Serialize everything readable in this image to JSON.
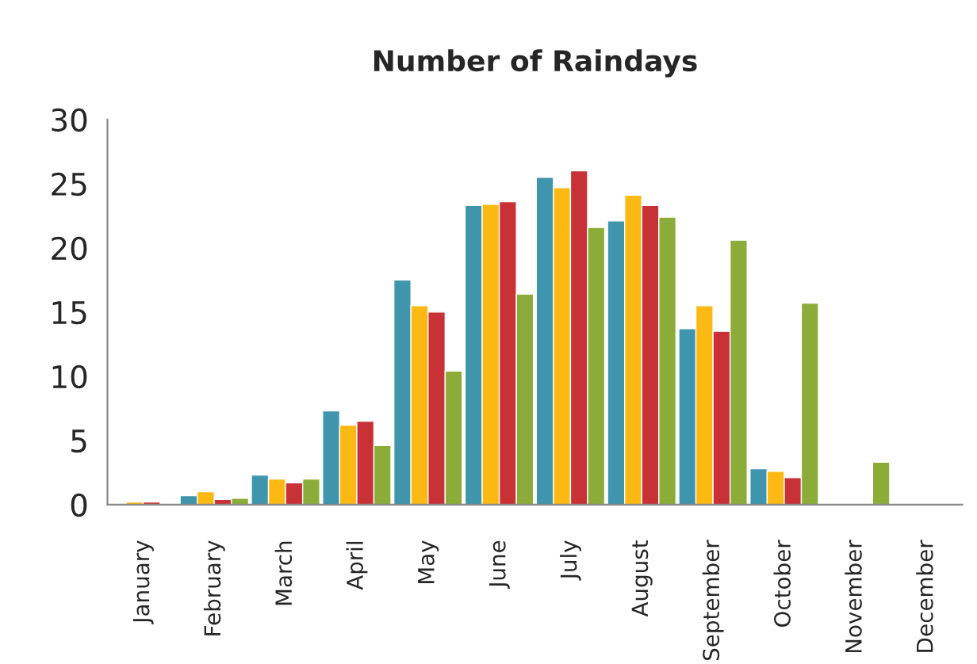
{
  "chart_data": {
    "type": "bar",
    "title": "Number of Raindays",
    "categories": [
      "January",
      "February",
      "March",
      "April",
      "May",
      "June",
      "July",
      "August",
      "September",
      "October",
      "November",
      "December"
    ],
    "series": [
      {
        "color": "#3e95ac",
        "values": [
          null,
          0.7,
          2.3,
          7.3,
          17.5,
          23.3,
          25.5,
          22.1,
          13.7,
          2.8,
          null,
          null
        ]
      },
      {
        "color": "#fdb913",
        "values": [
          0.2,
          1.0,
          2.0,
          6.2,
          15.5,
          23.4,
          24.7,
          24.1,
          15.5,
          2.6,
          null,
          null
        ]
      },
      {
        "color": "#c83236",
        "values": [
          0.2,
          0.4,
          1.7,
          6.5,
          15.0,
          23.6,
          26.0,
          23.3,
          13.5,
          2.1,
          null,
          null
        ]
      },
      {
        "color": "#8cac3a",
        "values": [
          null,
          0.5,
          2.0,
          4.6,
          10.4,
          16.4,
          21.6,
          22.4,
          20.6,
          15.7,
          3.3,
          null
        ]
      }
    ],
    "ylim": [
      0,
      30
    ],
    "yticks": [
      0,
      5,
      10,
      15,
      20,
      25,
      30
    ],
    "grid": false
  }
}
